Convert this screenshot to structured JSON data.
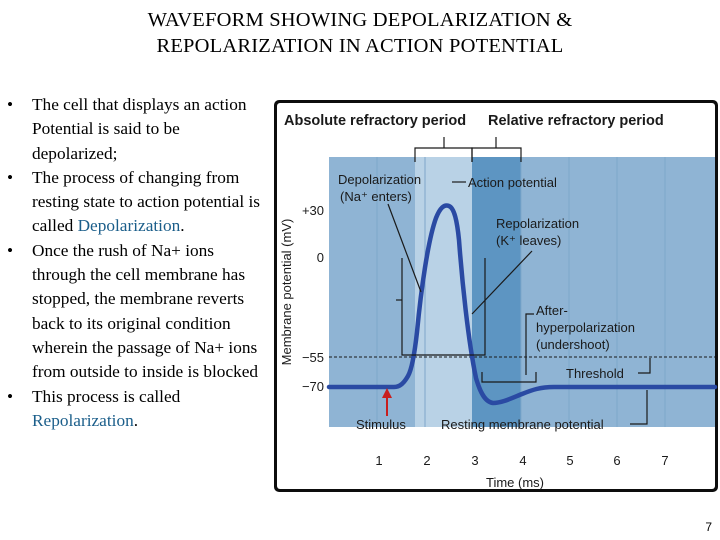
{
  "slide": {
    "title_line1": "WAVEFORM SHOWING DEPOLARIZATION &",
    "title_line2": "REPOLARIZATION IN ACTION POTENTIAL",
    "page_number": "7"
  },
  "bullets": [
    {
      "text": "The cell that displays an action Potential is said to be depolarized;",
      "highlight": ""
    },
    {
      "text": "The process of changing from resting state to action potential is called ",
      "highlight": "Depolarization",
      "after": "."
    },
    {
      "text": "Once the rush of Na+ ions through the cell membrane has stopped, the membrane reverts back to its original condition wherein the passage of Na+ ions from outside to inside is blocked",
      "highlight": ""
    },
    {
      "text": "This process is called ",
      "highlight": "Repolarization",
      "after": "."
    }
  ],
  "figure": {
    "header_left": "Absolute refractory period",
    "header_right": "Relative refractory period",
    "y_axis_label": "Membrane potential (mV)",
    "y_ticks": [
      "+30",
      "0",
      "−55",
      "−70"
    ],
    "x_ticks": [
      "1",
      "2",
      "3",
      "4",
      "5",
      "6",
      "7"
    ],
    "x_axis_label": "Time (ms)",
    "labels": {
      "depolarization": "Depolarization",
      "depolarization_sub": "(Na⁺ enters)",
      "action_potential": "Action potential",
      "repolarization": "Repolarization",
      "repolarization_sub": "(K⁺ leaves)",
      "after_1": "After-",
      "after_2": "hyperpolarization",
      "after_3": "(undershoot)",
      "threshold": "Threshold",
      "stimulus": "Stimulus",
      "resting": "Resting membrane potential"
    },
    "colors": {
      "frame": "#0d0d0d",
      "panel_bg": "#8fb4d4",
      "panel_light": "#b9d2e6",
      "panel_dark": "#5d95c2",
      "curve": "#2a4aa3",
      "stimulus_arrow": "#c81e1e",
      "accent_text": "#1b5e8a"
    }
  }
}
